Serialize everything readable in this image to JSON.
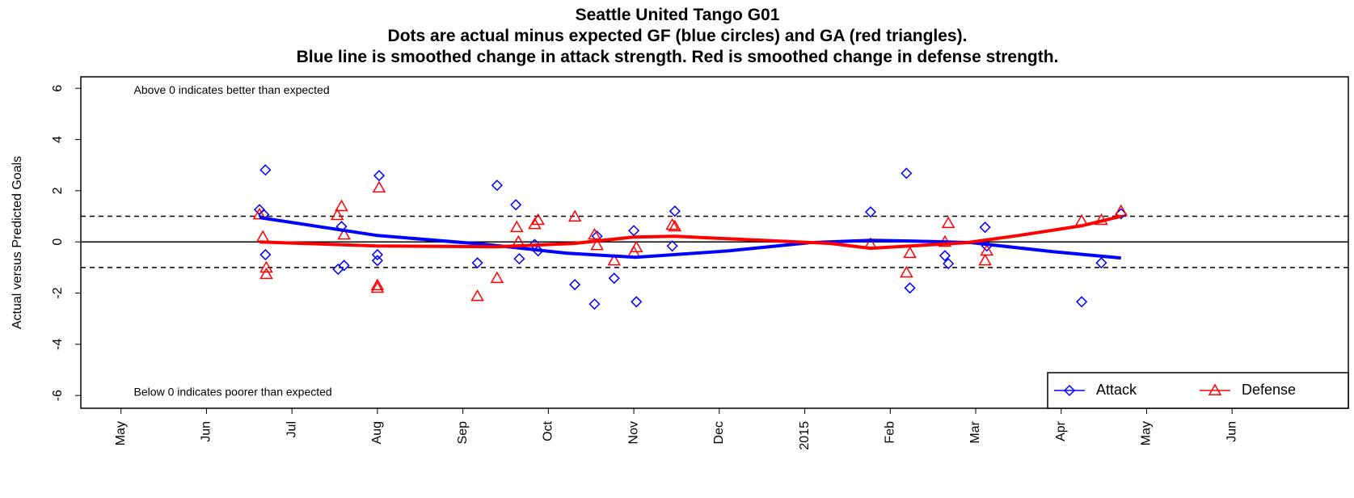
{
  "chart_data": {
    "type": "scatter",
    "title": [
      "Seattle United Tango G01",
      "Dots are actual minus expected GF (blue circles) and GA (red triangles).",
      "Blue line is smoothed change in attack strength. Red is smoothed change in defense strength."
    ],
    "ylabel": "Actual versus Predicted Goals",
    "annotations": [
      {
        "text": "Above 0 indicates better than expected",
        "x": 0.15,
        "y": 5.9
      },
      {
        "text": "Below 0 indicates poorer than expected",
        "x": 0.15,
        "y": -5.9
      }
    ],
    "xlim": [
      -0.47,
      14.36
    ],
    "xticks": [
      {
        "value": 0,
        "label": "May"
      },
      {
        "value": 1,
        "label": "Jun"
      },
      {
        "value": 2,
        "label": "Jul"
      },
      {
        "value": 3,
        "label": "Aug"
      },
      {
        "value": 4,
        "label": "Sep"
      },
      {
        "value": 5,
        "label": "Oct"
      },
      {
        "value": 6,
        "label": "Nov"
      },
      {
        "value": 7,
        "label": "Dec"
      },
      {
        "value": 8,
        "label": "2015"
      },
      {
        "value": 9,
        "label": "Feb"
      },
      {
        "value": 10,
        "label": "Mar"
      },
      {
        "value": 11,
        "label": "Apr"
      },
      {
        "value": 12,
        "label": "May"
      },
      {
        "value": 13,
        "label": "Jun"
      }
    ],
    "ylim": [
      -6.5,
      6.45
    ],
    "yticks": [
      -6,
      -4,
      -2,
      0,
      2,
      4,
      6
    ],
    "reference_lines": [
      {
        "y": 0,
        "style": "solid"
      },
      {
        "y": 1,
        "style": "dashed"
      },
      {
        "y": -1,
        "style": "dashed"
      }
    ],
    "legend": "bottomright",
    "series": [
      {
        "name": "Attack",
        "color": "#0000ff",
        "marker": "diamond",
        "x": [
          1.62,
          1.69,
          1.69,
          1.67,
          2.54,
          2.58,
          2.61,
          3.0,
          3.0,
          3.02,
          4.17,
          4.4,
          4.62,
          4.66,
          4.84,
          4.88,
          5.31,
          5.54,
          5.57,
          5.77,
          6.0,
          6.03,
          6.45,
          6.48,
          8.77,
          9.19,
          9.23,
          9.64,
          9.68,
          10.11,
          10.13,
          11.24,
          11.47,
          11.7
        ],
        "values": [
          1.26,
          2.81,
          -0.5,
          1.07,
          -1.07,
          0.6,
          -0.92,
          -0.5,
          -0.73,
          2.59,
          -0.82,
          2.21,
          1.45,
          -0.66,
          -0.1,
          -0.35,
          -1.67,
          -2.43,
          0.22,
          -1.42,
          0.44,
          -2.34,
          -0.16,
          1.2,
          1.17,
          2.68,
          -1.8,
          -0.54,
          -0.85,
          0.57,
          -0.16,
          -2.34,
          -0.82,
          1.1
        ],
        "smooth": {
          "x": [
            1.62,
            3.0,
            4.27,
            5.21,
            6.02,
            7.11,
            8.06,
            8.77,
            9.29,
            9.95,
            10.9,
            11.7
          ],
          "values": [
            0.95,
            0.25,
            -0.1,
            -0.44,
            -0.6,
            -0.35,
            -0.03,
            0.06,
            0.03,
            -0.03,
            -0.38,
            -0.63
          ]
        }
      },
      {
        "name": "Defense",
        "color": "#ff0000",
        "marker": "triangle",
        "x": [
          1.62,
          1.66,
          1.7,
          1.7,
          2.53,
          2.58,
          2.61,
          3.0,
          3.0,
          3.02,
          4.17,
          4.4,
          4.63,
          4.65,
          4.84,
          4.88,
          5.31,
          5.54,
          5.57,
          5.77,
          6.0,
          6.03,
          6.45,
          6.48,
          8.77,
          9.19,
          9.23,
          9.64,
          9.68,
          10.11,
          10.13,
          11.24,
          11.47,
          11.7
        ],
        "values": [
          1.07,
          0.19,
          -1.01,
          -1.26,
          1.04,
          1.39,
          0.28,
          -1.7,
          -1.8,
          2.12,
          -2.12,
          -1.42,
          0.57,
          0,
          0.69,
          0.85,
          0.98,
          0.28,
          -0.13,
          -0.73,
          -0.41,
          -0.22,
          0.66,
          0.6,
          -0.09,
          -1.2,
          -0.44,
          0,
          0.73,
          -0.73,
          -0.35,
          0.82,
          0.85,
          1.2
        ],
        "smooth": {
          "x": [
            1.62,
            3.0,
            4.4,
            5.3,
            6.0,
            6.48,
            7.5,
            8.3,
            8.77,
            9.23,
            9.9,
            10.5,
            11.24,
            11.7
          ],
          "values": [
            0.0,
            -0.16,
            -0.19,
            -0.06,
            0.19,
            0.22,
            0.06,
            -0.06,
            -0.25,
            -0.16,
            -0.03,
            0.25,
            0.63,
            1.0
          ]
        }
      }
    ]
  }
}
